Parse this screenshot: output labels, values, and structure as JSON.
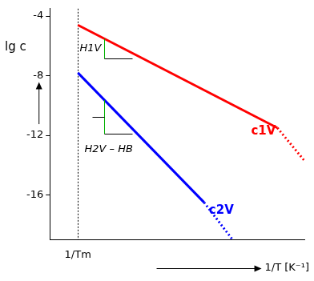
{
  "chart_data": {
    "type": "line",
    "x_label": "1/T [K⁻¹]",
    "y_label": "lg c",
    "xlim": [
      0,
      10
    ],
    "ylim": [
      -19,
      -3.5
    ],
    "xticks": [
      {
        "value": 1.1,
        "label": "1/Tm"
      }
    ],
    "yticks": [
      -16,
      -12,
      -8,
      -4
    ],
    "grid": "x",
    "series": [
      {
        "name": "c1V",
        "color": "#ff0000",
        "line_style": "solid",
        "x": [
          1.1,
          8.94
        ],
        "values": [
          -4.6,
          -11.5
        ]
      },
      {
        "color": "#ff0000",
        "line_style": "dotted",
        "x": [
          8.94,
          10
        ],
        "values": [
          -11.5,
          -13.7
        ]
      },
      {
        "name": "c2V",
        "color": "#0000ff",
        "line_style": "solid",
        "x": [
          1.1,
          6.06
        ],
        "values": [
          -7.8,
          -16.5
        ]
      },
      {
        "color": "#0000ff",
        "line_style": "dotted",
        "x": [
          6.06,
          7.18
        ],
        "values": [
          -16.5,
          -19
        ]
      }
    ],
    "annotations": [
      "H1V",
      "H2V – HB"
    ]
  }
}
